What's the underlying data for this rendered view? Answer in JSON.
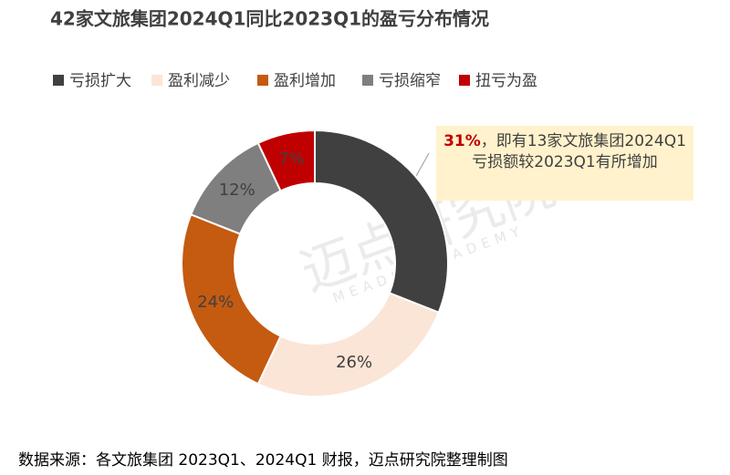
{
  "chart_data": {
    "type": "donut",
    "title": "42家文旅集团2024Q1同比2023Q1的盈亏分布情况",
    "categories": [
      "亏损扩大",
      "盈利减少",
      "盈利增加",
      "亏损缩窄",
      "扭亏为盈"
    ],
    "values": [
      31,
      26,
      24,
      12,
      7
    ],
    "value_labels": [
      null,
      "26%",
      "24%",
      "12%",
      "7%"
    ],
    "colors": [
      "#404040",
      "#fbe5d6",
      "#c55a11",
      "#7f7f7f",
      "#c00000"
    ],
    "annotation": {
      "highlight": "31%",
      "text": "，即有13家文旅集团2024Q1亏损额较2023Q1有所增加"
    },
    "watermark": {
      "text": "迈点研究院",
      "subtitle": "MEADIN ACADEMY"
    },
    "source": "数据来源：各文旅集团 2023Q1、2024Q1 财报，迈点研究院整理制图"
  }
}
